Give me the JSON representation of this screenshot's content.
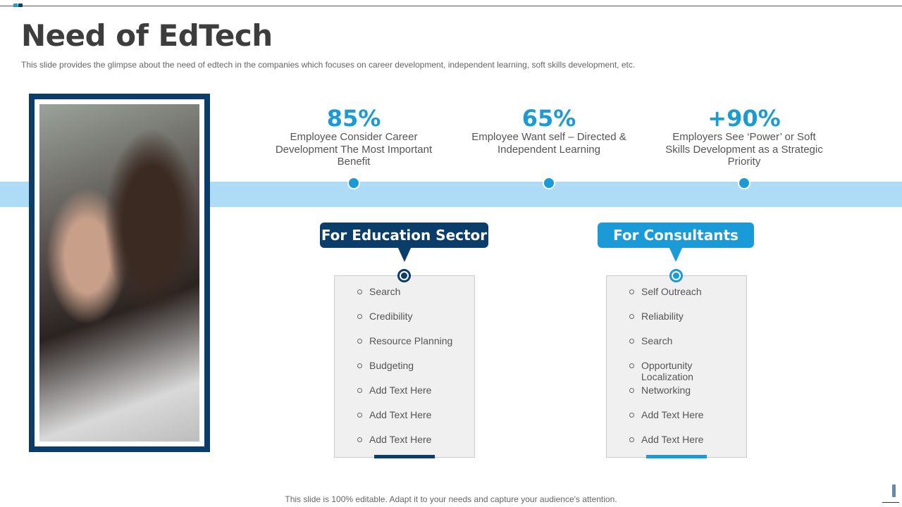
{
  "title": "Need of EdTech",
  "subtitle": "This slide provides the glimpse about the need of edtech in the companies which focuses on career development, independent learning, soft skills development, etc.",
  "stats": [
    {
      "value": "85%",
      "desc": "Employee Consider Career Development The Most Important Benefit"
    },
    {
      "value": "65%",
      "desc": "Employee Want self – Directed & Independent Learning"
    },
    {
      "value": "+90%",
      "desc": "Employers See ‘Power’ or Soft Skills Development as a Strategic Priority"
    }
  ],
  "sections": [
    {
      "label": "For Education Sector",
      "color": "#0b3d6b",
      "items": [
        "Search",
        "Credibility",
        "Resource Planning",
        "Budgeting",
        "Add Text Here",
        "Add Text Here",
        "Add Text Here"
      ]
    },
    {
      "label": "For Consultants",
      "color": "#1a9ad6",
      "items": [
        "Self Outreach",
        "Reliability",
        "Search",
        "Opportunity Localization",
        "Networking",
        "Add Text Here",
        "Add Text Here"
      ]
    }
  ],
  "footer": "This slide is 100% editable. Adapt it to your needs and capture your audience's attention."
}
